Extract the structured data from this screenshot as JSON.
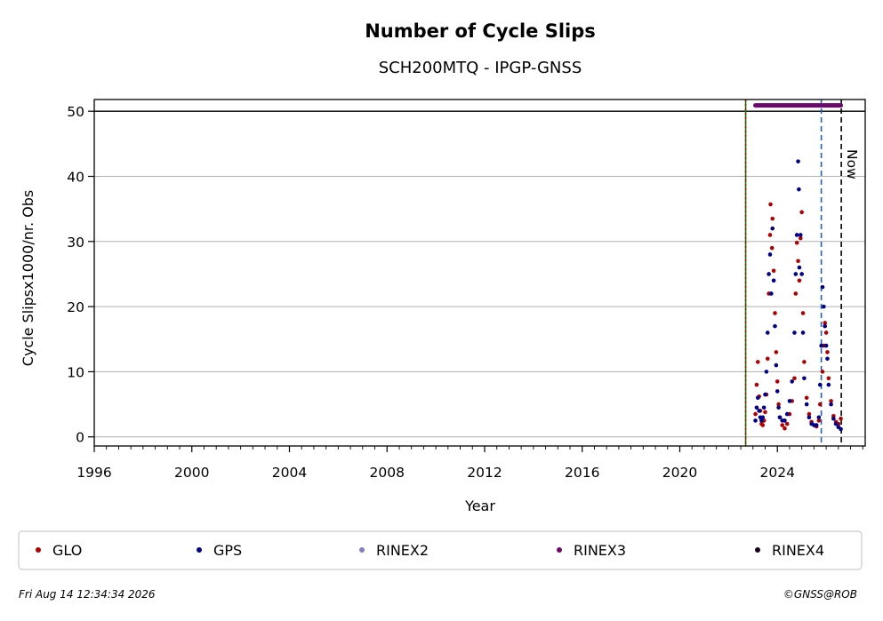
{
  "chart_data": {
    "type": "scatter",
    "title": "Number of Cycle Slips",
    "subtitle": "SCH200MTQ - IPGP-GNSS",
    "xlabel": "Year",
    "ylabel": "Cycle Slipsx1000/nr. Obs",
    "xlim": [
      1996,
      2027.6
    ],
    "ylim": [
      -1.4,
      51.8
    ],
    "x_ticks": [
      1996,
      2000,
      2004,
      2008,
      2012,
      2016,
      2020,
      2024
    ],
    "y_ticks": [
      0,
      10,
      20,
      30,
      40,
      50
    ],
    "grid": "y",
    "reference_line_y": 50,
    "vertical_lines": [
      {
        "x": 2022.7,
        "color": "#008000",
        "style": "solid"
      },
      {
        "x": 2022.7,
        "color": "#cc0000",
        "style": "dotted"
      },
      {
        "x": 2025.8,
        "color": "#1f5fbf",
        "style": "dashed"
      },
      {
        "x": 2026.62,
        "color": "#000000",
        "style": "dashed",
        "label": "Now"
      }
    ],
    "rinex3_band": {
      "x_start": 2023.1,
      "x_end": 2026.6,
      "y": 50.9
    },
    "series": [
      {
        "name": "GLO",
        "color": "#b00000",
        "points": [
          [
            2023.1,
            3.5
          ],
          [
            2023.15,
            8.0
          ],
          [
            2023.2,
            11.5
          ],
          [
            2023.25,
            6.2
          ],
          [
            2023.3,
            4.0
          ],
          [
            2023.35,
            2.0
          ],
          [
            2023.4,
            1.8
          ],
          [
            2023.45,
            2.5
          ],
          [
            2023.5,
            3.8
          ],
          [
            2023.55,
            6.5
          ],
          [
            2023.6,
            12.0
          ],
          [
            2023.65,
            22.0
          ],
          [
            2023.7,
            31.0
          ],
          [
            2023.72,
            35.7
          ],
          [
            2023.78,
            29.0
          ],
          [
            2023.8,
            33.5
          ],
          [
            2023.85,
            25.5
          ],
          [
            2023.9,
            19.0
          ],
          [
            2023.95,
            13.0
          ],
          [
            2024.0,
            8.5
          ],
          [
            2024.05,
            5.0
          ],
          [
            2024.1,
            3.0
          ],
          [
            2024.2,
            1.8
          ],
          [
            2024.3,
            1.3
          ],
          [
            2024.4,
            2.0
          ],
          [
            2024.5,
            3.5
          ],
          [
            2024.6,
            5.5
          ],
          [
            2024.7,
            9.0
          ],
          [
            2024.75,
            22.0
          ],
          [
            2024.8,
            29.8
          ],
          [
            2024.85,
            27.0
          ],
          [
            2024.9,
            24.0
          ],
          [
            2024.95,
            30.5
          ],
          [
            2025.0,
            34.5
          ],
          [
            2025.05,
            19.0
          ],
          [
            2025.1,
            11.5
          ],
          [
            2025.2,
            6.0
          ],
          [
            2025.3,
            3.5
          ],
          [
            2025.4,
            2.3
          ],
          [
            2025.5,
            1.8
          ],
          [
            2025.6,
            1.6
          ],
          [
            2025.7,
            2.5
          ],
          [
            2025.75,
            5.0
          ],
          [
            2025.85,
            10.0
          ],
          [
            2025.9,
            14.0
          ],
          [
            2025.95,
            17.5
          ],
          [
            2026.0,
            16.0
          ],
          [
            2026.05,
            13.0
          ],
          [
            2026.1,
            9.0
          ],
          [
            2026.2,
            5.5
          ],
          [
            2026.3,
            3.2
          ],
          [
            2026.4,
            2.3
          ],
          [
            2026.5,
            2.0
          ],
          [
            2026.6,
            2.8
          ]
        ]
      },
      {
        "name": "GPS",
        "color": "#00008b",
        "points": [
          [
            2023.1,
            2.5
          ],
          [
            2023.15,
            4.5
          ],
          [
            2023.2,
            6.0
          ],
          [
            2023.25,
            4.0
          ],
          [
            2023.3,
            3.0
          ],
          [
            2023.35,
            2.5
          ],
          [
            2023.4,
            3.0
          ],
          [
            2023.45,
            4.5
          ],
          [
            2023.5,
            6.5
          ],
          [
            2023.55,
            10.0
          ],
          [
            2023.6,
            16.0
          ],
          [
            2023.65,
            25.0
          ],
          [
            2023.7,
            28.0
          ],
          [
            2023.75,
            22.0
          ],
          [
            2023.8,
            32.0
          ],
          [
            2023.85,
            24.0
          ],
          [
            2023.9,
            17.0
          ],
          [
            2023.95,
            11.0
          ],
          [
            2024.0,
            7.0
          ],
          [
            2024.05,
            4.5
          ],
          [
            2024.1,
            3.0
          ],
          [
            2024.2,
            2.5
          ],
          [
            2024.3,
            2.5
          ],
          [
            2024.4,
            3.5
          ],
          [
            2024.5,
            5.5
          ],
          [
            2024.6,
            8.5
          ],
          [
            2024.7,
            16.0
          ],
          [
            2024.75,
            25.0
          ],
          [
            2024.8,
            31.0
          ],
          [
            2024.85,
            42.3
          ],
          [
            2024.88,
            38.0
          ],
          [
            2024.9,
            26.0
          ],
          [
            2024.95,
            31.0
          ],
          [
            2025.0,
            25.0
          ],
          [
            2025.05,
            16.0
          ],
          [
            2025.1,
            9.0
          ],
          [
            2025.2,
            5.0
          ],
          [
            2025.3,
            3.0
          ],
          [
            2025.4,
            2.0
          ],
          [
            2025.5,
            1.8
          ],
          [
            2025.6,
            1.8
          ],
          [
            2025.7,
            3.0
          ],
          [
            2025.75,
            8.0
          ],
          [
            2025.8,
            14.0
          ],
          [
            2025.85,
            23.0
          ],
          [
            2025.9,
            20.0
          ],
          [
            2025.95,
            17.0
          ],
          [
            2026.0,
            14.0
          ],
          [
            2026.05,
            12.0
          ],
          [
            2026.1,
            8.0
          ],
          [
            2026.2,
            5.0
          ],
          [
            2026.3,
            2.8
          ],
          [
            2026.4,
            2.0
          ],
          [
            2026.5,
            1.5
          ],
          [
            2026.6,
            1.2
          ]
        ]
      },
      {
        "name": "RINEX2",
        "color": "#8080c0",
        "points": []
      },
      {
        "name": "RINEX3",
        "color": "#6a0a6a",
        "points": []
      },
      {
        "name": "RINEX4",
        "color": "#1a0020",
        "points": []
      }
    ]
  },
  "footer": {
    "timestamp": "Fri Aug 14 12:34:34 2026",
    "credit": "©GNSS@ROB"
  }
}
